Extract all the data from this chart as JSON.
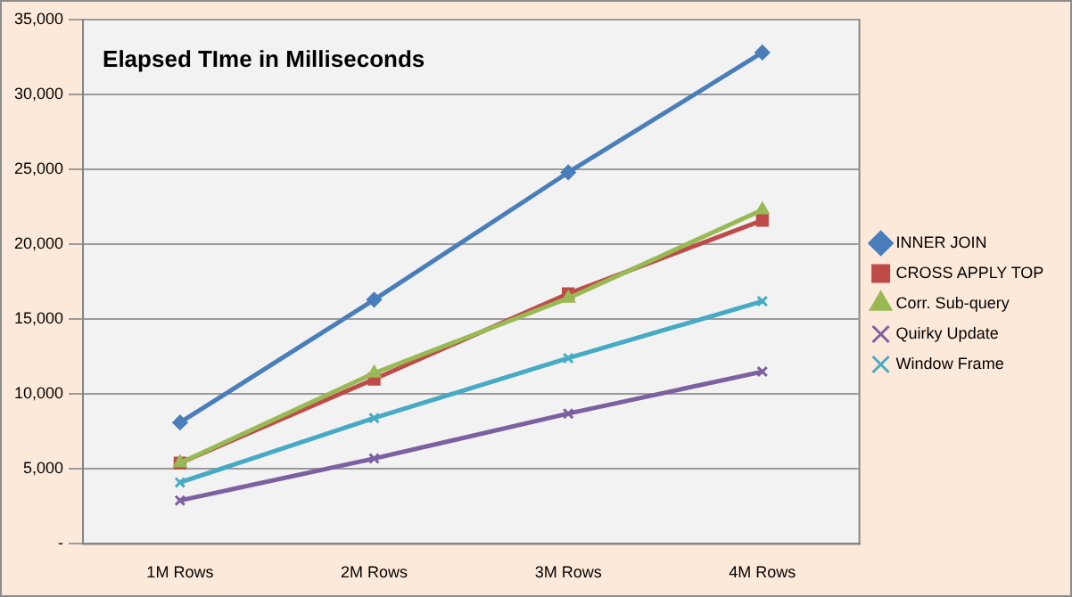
{
  "chart_data": {
    "type": "line",
    "title": "Elapsed TIme in Milliseconds",
    "categories": [
      "1M Rows",
      "2M Rows",
      "3M Rows",
      "4M Rows"
    ],
    "series": [
      {
        "name": "INNER JOIN",
        "color": "#4a7ebb",
        "marker": "diamond",
        "values": [
          8100,
          16300,
          24800,
          32800
        ]
      },
      {
        "name": "CROSS APPLY TOP",
        "color": "#be4b48",
        "marker": "square",
        "values": [
          5400,
          11000,
          16700,
          21600
        ]
      },
      {
        "name": "Corr. Sub-query",
        "color": "#98b954",
        "marker": "triangle",
        "values": [
          5400,
          11400,
          16400,
          22300
        ]
      },
      {
        "name": "Quirky Update",
        "color": "#7d60a0",
        "marker": "cross",
        "values": [
          2900,
          5700,
          8700,
          11500
        ]
      },
      {
        "name": "Window Frame",
        "color": "#46aac5",
        "marker": "cross",
        "values": [
          4100,
          8400,
          12400,
          16200
        ]
      }
    ],
    "ylim": [
      0,
      35000
    ],
    "yticks": [
      {
        "value": 0,
        "label": "-"
      },
      {
        "value": 5000,
        "label": "5,000"
      },
      {
        "value": 10000,
        "label": "10,000"
      },
      {
        "value": 15000,
        "label": "15,000"
      },
      {
        "value": 20000,
        "label": "20,000"
      },
      {
        "value": 25000,
        "label": "25,000"
      },
      {
        "value": 30000,
        "label": "30,000"
      },
      {
        "value": 35000,
        "label": "35,000"
      }
    ],
    "grid": "y",
    "legend": "right",
    "line_style": "solid"
  }
}
